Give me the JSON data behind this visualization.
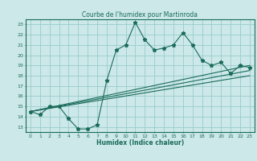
{
  "title": "Courbe de l'humidex pour Martinroda",
  "xlabel": "Humidex (Indice chaleur)",
  "background_color": "#cce8e8",
  "grid_color": "#99cccc",
  "line_color": "#1a6b5a",
  "xlim": [
    -0.5,
    23.5
  ],
  "ylim": [
    12.5,
    23.5
  ],
  "xticks": [
    0,
    1,
    2,
    3,
    4,
    5,
    6,
    7,
    8,
    9,
    10,
    11,
    12,
    13,
    14,
    15,
    16,
    17,
    18,
    19,
    20,
    21,
    22,
    23
  ],
  "yticks": [
    13,
    14,
    15,
    16,
    17,
    18,
    19,
    20,
    21,
    22,
    23
  ],
  "line1_x": [
    0,
    1,
    2,
    3,
    4,
    5,
    6,
    7,
    8,
    9,
    10,
    11,
    12,
    13,
    14,
    15,
    16,
    17,
    18,
    19,
    20,
    21,
    22,
    23
  ],
  "line1_y": [
    14.5,
    14.2,
    15.0,
    15.0,
    13.8,
    12.8,
    12.8,
    13.2,
    17.5,
    20.5,
    21.0,
    23.2,
    21.5,
    20.5,
    20.7,
    21.0,
    22.2,
    21.0,
    19.5,
    19.0,
    19.3,
    18.2,
    19.0,
    18.8
  ],
  "line2_x": [
    0,
    23
  ],
  "line2_y": [
    14.5,
    19.0
  ],
  "line3_x": [
    0,
    23
  ],
  "line3_y": [
    14.5,
    18.0
  ],
  "line4_x": [
    0,
    23
  ],
  "line4_y": [
    14.5,
    18.5
  ]
}
